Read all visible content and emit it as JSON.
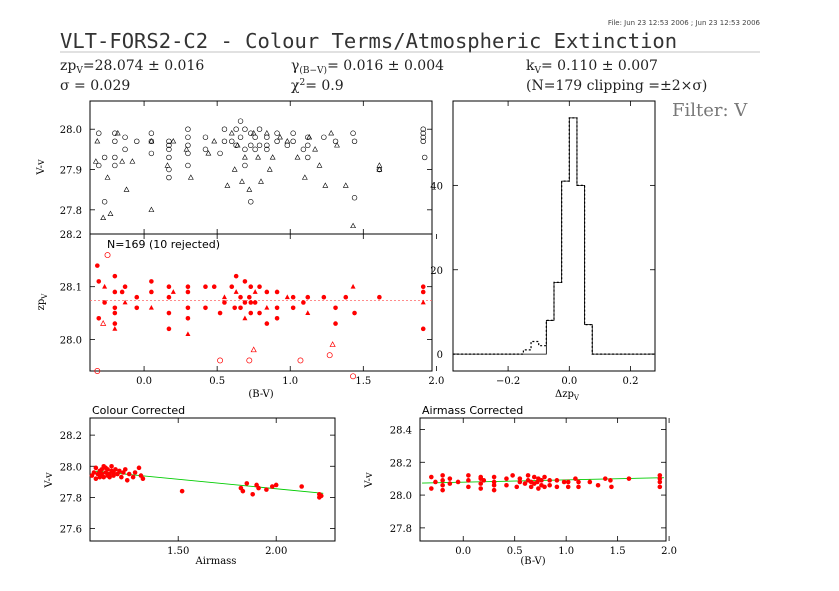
{
  "header": {
    "file_stamp": "File: Jun 23 12:53 2006 ; Jun 23 12:53 2006",
    "title": "VLT-FORS2-C2 - Colour Terms/Atmospheric Extinction",
    "zp_text": "=28.074 ± 0.016",
    "sigma_text": "= 0.029",
    "gamma_text": "= 0.016 ± 0.004",
    "chi2_text": "= 0.9",
    "k_text": "= 0.110 ± 0.007",
    "clip_text": "(N=179 clipping =±2×σ)",
    "filter": "Filter: V"
  },
  "colors": {
    "axis": "#000000",
    "points": "#ff0000",
    "fit_line": "#00cc00",
    "zp_line": "#ff6666",
    "histogram": "#000000"
  },
  "chart_data": [
    {
      "id": "top",
      "type": "scatter",
      "ylabel": "V-v",
      "ylim": [
        27.74,
        28.07
      ],
      "yticks": [
        27.8,
        27.9,
        28.0
      ],
      "xlim": [
        -0.37,
        1.97
      ],
      "marker": "mixed open circles / triangles",
      "series": [
        {
          "marker": "circle",
          "x": [
            -0.31,
            -0.31,
            -0.27,
            -0.27,
            -0.2,
            -0.2,
            -0.2,
            -0.2,
            -0.13,
            -0.13,
            -0.05,
            0.05,
            0.05,
            0.05,
            0.17,
            0.17,
            0.17,
            0.17,
            0.17,
            0.17,
            0.3,
            0.3,
            0.3,
            0.3,
            0.3,
            0.42,
            0.42,
            0.52,
            0.55,
            0.55,
            0.6,
            0.63,
            0.63,
            0.66,
            0.66,
            0.69,
            0.69,
            0.69,
            0.73,
            0.73,
            0.73,
            0.76,
            0.76,
            0.79,
            0.79,
            0.84,
            0.84,
            0.84,
            0.91,
            0.91,
            0.98,
            1.02,
            1.02,
            1.09,
            1.12,
            1.12,
            1.12,
            1.23,
            1.31,
            1.43,
            1.44,
            1.44,
            1.61,
            1.91,
            1.91,
            1.91,
            1.91,
            1.92
          ],
          "y": [
            27.99,
            27.91,
            27.93,
            27.82,
            27.99,
            27.97,
            27.93,
            27.91,
            27.98,
            27.95,
            27.97,
            27.99,
            27.97,
            27.94,
            27.97,
            27.96,
            27.95,
            27.93,
            27.9,
            27.88,
            28.0,
            27.98,
            27.96,
            27.94,
            27.91,
            27.98,
            27.95,
            27.94,
            28.0,
            27.97,
            27.97,
            28.0,
            27.96,
            28.02,
            27.98,
            28.0,
            27.95,
            27.91,
            27.99,
            27.96,
            27.82,
            27.98,
            27.95,
            28.0,
            27.96,
            27.98,
            27.96,
            27.95,
            27.99,
            27.97,
            27.96,
            27.99,
            27.97,
            27.95,
            27.98,
            27.96,
            27.93,
            27.98,
            27.97,
            27.99,
            27.97,
            27.83,
            27.9,
            28.0,
            27.99,
            27.98,
            27.97,
            27.93
          ]
        },
        {
          "marker": "triangle",
          "x": [
            -0.33,
            -0.32,
            -0.28,
            -0.25,
            -0.23,
            -0.18,
            -0.15,
            -0.12,
            -0.08,
            0.05,
            0.05,
            0.16,
            0.2,
            0.29,
            0.32,
            0.44,
            0.48,
            0.57,
            0.6,
            0.62,
            0.64,
            0.67,
            0.69,
            0.72,
            0.75,
            0.78,
            0.8,
            0.84,
            0.86,
            0.88,
            0.93,
            0.98,
            1.05,
            1.1,
            1.13,
            1.17,
            1.2,
            1.24,
            1.28,
            1.32,
            1.38,
            1.43,
            1.61,
            1.61
          ],
          "y": [
            27.92,
            27.97,
            27.78,
            27.88,
            27.79,
            27.99,
            27.92,
            27.85,
            27.92,
            27.97,
            27.8,
            27.91,
            27.97,
            27.95,
            27.88,
            27.94,
            27.97,
            27.86,
            27.99,
            27.9,
            27.96,
            27.87,
            27.93,
            27.85,
            27.99,
            27.93,
            27.87,
            27.99,
            27.9,
            27.93,
            27.98,
            27.97,
            27.93,
            27.88,
            27.98,
            27.95,
            27.91,
            27.86,
            27.99,
            27.96,
            27.86,
            27.76,
            27.91,
            27.9
          ]
        }
      ]
    },
    {
      "id": "zp",
      "type": "scatter",
      "annotation": "N=169 (10 rejected)",
      "ylabel": "zp",
      "ylabel_sub": "V",
      "xlabel": "(B-V)",
      "ylim": [
        27.94,
        28.2
      ],
      "yticks": [
        28.0,
        28.1,
        28.2
      ],
      "xlim": [
        -0.37,
        1.97
      ],
      "xticks": [
        0.0,
        0.5,
        1.0,
        1.5,
        2.0
      ],
      "zp_line": 28.074,
      "kept": [
        [
          -0.31,
          28.11
        ],
        [
          -0.31,
          28.04
        ],
        [
          -0.32,
          28.14
        ],
        [
          -0.27,
          28.1
        ],
        [
          -0.27,
          28.07
        ],
        [
          -0.2,
          28.06
        ],
        [
          -0.2,
          28.05
        ],
        [
          -0.2,
          28.03
        ],
        [
          -0.2,
          28.02
        ],
        [
          -0.2,
          28.09
        ],
        [
          -0.2,
          28.12
        ],
        [
          -0.15,
          28.09
        ],
        [
          -0.13,
          28.1
        ],
        [
          -0.13,
          28.07
        ],
        [
          -0.05,
          28.08
        ],
        [
          -0.05,
          28.06
        ],
        [
          0.05,
          28.11
        ],
        [
          0.05,
          28.09
        ],
        [
          0.05,
          28.06
        ],
        [
          0.17,
          28.1
        ],
        [
          0.17,
          28.08
        ],
        [
          0.17,
          28.05
        ],
        [
          0.17,
          28.02
        ],
        [
          0.2,
          28.09
        ],
        [
          0.3,
          28.1
        ],
        [
          0.3,
          28.09
        ],
        [
          0.3,
          28.06
        ],
        [
          0.3,
          28.04
        ],
        [
          0.3,
          28.01
        ],
        [
          0.42,
          28.1
        ],
        [
          0.42,
          28.06
        ],
        [
          0.48,
          28.1
        ],
        [
          0.52,
          28.05
        ],
        [
          0.55,
          28.08
        ],
        [
          0.55,
          28.07
        ],
        [
          0.6,
          28.1
        ],
        [
          0.62,
          28.06
        ],
        [
          0.63,
          28.12
        ],
        [
          0.63,
          28.09
        ],
        [
          0.66,
          28.08
        ],
        [
          0.66,
          28.06
        ],
        [
          0.69,
          28.11
        ],
        [
          0.69,
          28.07
        ],
        [
          0.69,
          28.04
        ],
        [
          0.72,
          28.08
        ],
        [
          0.73,
          28.1
        ],
        [
          0.73,
          28.07
        ],
        [
          0.73,
          28.05
        ],
        [
          0.76,
          28.09
        ],
        [
          0.76,
          28.07
        ],
        [
          0.79,
          28.1
        ],
        [
          0.79,
          28.05
        ],
        [
          0.84,
          28.09
        ],
        [
          0.84,
          28.06
        ],
        [
          0.84,
          28.03
        ],
        [
          0.91,
          28.09
        ],
        [
          0.91,
          28.06
        ],
        [
          0.91,
          28.04
        ],
        [
          0.98,
          28.08
        ],
        [
          1.02,
          28.08
        ],
        [
          1.02,
          28.06
        ],
        [
          1.09,
          28.07
        ],
        [
          1.12,
          28.08
        ],
        [
          1.12,
          28.05
        ],
        [
          1.23,
          28.08
        ],
        [
          1.31,
          28.06
        ],
        [
          1.31,
          28.03
        ],
        [
          1.38,
          28.08
        ],
        [
          1.43,
          28.1
        ],
        [
          1.44,
          28.05
        ],
        [
          1.61,
          28.08
        ],
        [
          1.91,
          28.1
        ],
        [
          1.91,
          28.09
        ],
        [
          1.91,
          28.07
        ],
        [
          1.91,
          28.02
        ]
      ],
      "rejected": [
        [
          -0.25,
          28.16
        ],
        [
          -0.32,
          27.94
        ],
        [
          -0.28,
          28.03
        ],
        [
          0.52,
          27.96
        ],
        [
          0.72,
          27.96
        ],
        [
          0.75,
          27.98
        ],
        [
          1.07,
          27.96
        ],
        [
          1.27,
          27.97
        ],
        [
          1.29,
          27.99
        ],
        [
          1.43,
          27.93
        ]
      ]
    },
    {
      "id": "histogram",
      "type": "histogram",
      "xlabel": "Δzp",
      "xlabel_sub": "V",
      "xlim": [
        -0.38,
        0.28
      ],
      "xticks": [
        -0.2,
        0.0,
        0.2
      ],
      "ylim": [
        -4,
        60
      ],
      "yticks": [
        0,
        20,
        40
      ],
      "bin_edges": [
        -0.38,
        -0.15,
        -0.125,
        -0.1,
        -0.075,
        -0.05,
        -0.025,
        0.0,
        0.025,
        0.05,
        0.075,
        0.28
      ],
      "counts_all": [
        0,
        1,
        3,
        2,
        8,
        17,
        41,
        56,
        40,
        7,
        0
      ],
      "counts_kept": [
        0,
        0,
        0,
        0,
        8,
        17,
        41,
        56,
        40,
        7,
        0
      ],
      "style": "solid and dotted step outlines"
    },
    {
      "id": "colour_corrected",
      "type": "scatter",
      "title": "Colour Corrected",
      "ylabel": "V-v",
      "xlabel": "Airmass",
      "xlim": [
        1.05,
        2.3
      ],
      "ylim": [
        27.52,
        28.31
      ],
      "xticks": [
        1.5,
        2.0
      ],
      "yticks": [
        27.6,
        27.8,
        28.0,
        28.2
      ],
      "fit_line": {
        "x": [
          1.08,
          2.24
        ],
        "y": [
          27.968,
          27.826
        ]
      },
      "x": [
        1.06,
        1.07,
        1.08,
        1.08,
        1.09,
        1.1,
        1.1,
        1.11,
        1.11,
        1.12,
        1.12,
        1.13,
        1.13,
        1.14,
        1.14,
        1.15,
        1.15,
        1.16,
        1.16,
        1.17,
        1.17,
        1.18,
        1.19,
        1.2,
        1.21,
        1.22,
        1.23,
        1.24,
        1.25,
        1.27,
        1.28,
        1.3,
        1.31,
        1.32,
        1.52,
        1.82,
        1.83,
        1.85,
        1.88,
        1.9,
        1.91,
        1.95,
        1.98,
        2.0,
        2.13,
        2.22,
        2.22,
        2.23
      ],
      "y": [
        27.94,
        27.96,
        27.92,
        27.99,
        27.95,
        27.97,
        27.93,
        27.98,
        27.95,
        28.0,
        27.93,
        27.96,
        27.99,
        27.94,
        27.98,
        27.95,
        27.93,
        27.97,
        28.0,
        27.94,
        27.96,
        27.98,
        27.95,
        27.97,
        27.93,
        27.96,
        27.98,
        27.91,
        27.95,
        27.93,
        27.96,
        27.99,
        27.94,
        27.92,
        27.84,
        27.86,
        27.84,
        27.89,
        27.82,
        27.88,
        27.86,
        27.85,
        27.87,
        27.88,
        27.87,
        27.82,
        27.8,
        27.81
      ]
    },
    {
      "id": "airmass_corrected",
      "type": "scatter",
      "title": "Airmass Corrected",
      "ylabel": "V-v",
      "xlabel": "(B-V)",
      "xlim": [
        -0.42,
        1.97
      ],
      "ylim": [
        27.72,
        28.47
      ],
      "xticks": [
        0.0,
        0.5,
        1.0,
        1.5,
        2.0
      ],
      "yticks": [
        27.8,
        28.0,
        28.2,
        28.4
      ],
      "fit_line": {
        "x": [
          -0.4,
          1.95
        ],
        "y": [
          28.073,
          28.106
        ]
      },
      "x": [
        -0.31,
        -0.31,
        -0.27,
        -0.2,
        -0.2,
        -0.2,
        -0.2,
        -0.13,
        -0.13,
        -0.05,
        0.05,
        0.05,
        0.05,
        0.17,
        0.17,
        0.17,
        0.17,
        0.2,
        0.3,
        0.3,
        0.3,
        0.3,
        0.42,
        0.42,
        0.48,
        0.52,
        0.55,
        0.55,
        0.6,
        0.63,
        0.63,
        0.66,
        0.66,
        0.69,
        0.69,
        0.72,
        0.73,
        0.73,
        0.76,
        0.76,
        0.79,
        0.79,
        0.84,
        0.84,
        0.91,
        0.91,
        0.98,
        1.02,
        1.02,
        1.09,
        1.12,
        1.12,
        1.23,
        1.31,
        1.38,
        1.43,
        1.44,
        1.61,
        1.91,
        1.91,
        1.91,
        1.91
      ],
      "y": [
        28.11,
        28.04,
        28.08,
        28.12,
        28.09,
        28.06,
        28.03,
        28.1,
        28.07,
        28.08,
        28.12,
        28.09,
        28.05,
        28.1,
        28.07,
        28.04,
        28.11,
        28.09,
        28.11,
        28.08,
        28.06,
        28.03,
        28.1,
        28.06,
        28.12,
        28.05,
        28.08,
        28.1,
        28.07,
        28.12,
        28.09,
        28.08,
        28.05,
        28.11,
        28.07,
        28.08,
        28.1,
        28.04,
        28.09,
        28.06,
        28.11,
        28.05,
        28.09,
        28.06,
        28.09,
        28.05,
        28.08,
        28.08,
        28.05,
        28.1,
        28.08,
        28.05,
        28.08,
        28.06,
        28.1,
        28.09,
        28.05,
        28.1,
        28.12,
        28.1,
        28.08,
        28.05
      ]
    }
  ]
}
